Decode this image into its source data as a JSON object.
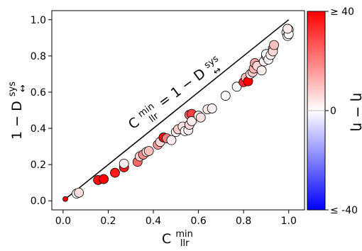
{
  "chart_data": {
    "type": "scatter",
    "x_axis": {
      "label_main": "C",
      "label_sup": "min",
      "label_sub": "llr",
      "range": [
        -0.05,
        1.07
      ],
      "ticks": [
        0.0,
        0.2,
        0.4,
        0.6,
        0.8,
        1.0
      ],
      "tick_labels": [
        "0.0",
        "0.2",
        "0.4",
        "0.6",
        "0.8",
        "1.0"
      ]
    },
    "y_axis": {
      "label_main": "1 − D",
      "label_sup": "sys",
      "label_sub": "↔",
      "range": [
        -0.05,
        1.05
      ],
      "ticks": [
        0.0,
        0.2,
        0.4,
        0.6,
        0.8,
        1.0
      ],
      "tick_labels": [
        "0.0",
        "0.2",
        "0.4",
        "0.6",
        "0.8",
        "1.0"
      ]
    },
    "reference_line": {
      "from": [
        0,
        0
      ],
      "to": [
        1,
        1
      ],
      "label_lhs_main": "C",
      "label_lhs_sup": "min",
      "label_lhs_sub": "llr",
      "label_eq": " = 1 − D",
      "label_rhs_sup": "sys",
      "label_rhs_sub": "↔"
    },
    "colorbar": {
      "label": "η − η",
      "min": -40,
      "max": 40,
      "tick_labels": [
        "≥ 40",
        "0",
        "≤ -40"
      ],
      "colors": {
        "low": "#0000ff",
        "mid": "#ffffff",
        "high": "#ff0000"
      }
    },
    "points": [
      {
        "x": 0.01,
        "y": 0.01,
        "c": 40
      },
      {
        "x": 0.06,
        "y": 0.04,
        "c": 0
      },
      {
        "x": 0.07,
        "y": 0.045,
        "c": 5
      },
      {
        "x": 0.155,
        "y": 0.115,
        "c": 38
      },
      {
        "x": 0.18,
        "y": 0.12,
        "c": 40
      },
      {
        "x": 0.23,
        "y": 0.155,
        "c": 36
      },
      {
        "x": 0.27,
        "y": 0.185,
        "c": 36
      },
      {
        "x": 0.27,
        "y": 0.205,
        "c": 2
      },
      {
        "x": 0.33,
        "y": 0.215,
        "c": 24
      },
      {
        "x": 0.34,
        "y": 0.245,
        "c": 8
      },
      {
        "x": 0.355,
        "y": 0.255,
        "c": 18
      },
      {
        "x": 0.37,
        "y": 0.27,
        "c": 4
      },
      {
        "x": 0.38,
        "y": 0.275,
        "c": 10
      },
      {
        "x": 0.42,
        "y": 0.31,
        "c": 16
      },
      {
        "x": 0.43,
        "y": 0.325,
        "c": 6
      },
      {
        "x": 0.445,
        "y": 0.35,
        "c": 38
      },
      {
        "x": 0.46,
        "y": 0.345,
        "c": 20
      },
      {
        "x": 0.48,
        "y": 0.335,
        "c": 3
      },
      {
        "x": 0.5,
        "y": 0.38,
        "c": 2
      },
      {
        "x": 0.51,
        "y": 0.395,
        "c": 8
      },
      {
        "x": 0.53,
        "y": 0.41,
        "c": 4
      },
      {
        "x": 0.54,
        "y": 0.385,
        "c": 0
      },
      {
        "x": 0.555,
        "y": 0.39,
        "c": 2
      },
      {
        "x": 0.56,
        "y": 0.42,
        "c": 6
      },
      {
        "x": 0.56,
        "y": 0.475,
        "c": 24
      },
      {
        "x": 0.57,
        "y": 0.48,
        "c": 30
      },
      {
        "x": 0.57,
        "y": 0.44,
        "c": 3
      },
      {
        "x": 0.6,
        "y": 0.47,
        "c": 2
      },
      {
        "x": 0.61,
        "y": 0.46,
        "c": 5
      },
      {
        "x": 0.64,
        "y": 0.505,
        "c": 4
      },
      {
        "x": 0.66,
        "y": 0.51,
        "c": 2
      },
      {
        "x": 0.72,
        "y": 0.58,
        "c": 0
      },
      {
        "x": 0.77,
        "y": 0.63,
        "c": -1
      },
      {
        "x": 0.8,
        "y": 0.655,
        "c": 34
      },
      {
        "x": 0.81,
        "y": 0.68,
        "c": 10
      },
      {
        "x": 0.82,
        "y": 0.66,
        "c": 40
      },
      {
        "x": 0.83,
        "y": 0.7,
        "c": 4
      },
      {
        "x": 0.84,
        "y": 0.71,
        "c": 8
      },
      {
        "x": 0.845,
        "y": 0.73,
        "c": 12
      },
      {
        "x": 0.85,
        "y": 0.76,
        "c": 14
      },
      {
        "x": 0.86,
        "y": 0.745,
        "c": 6
      },
      {
        "x": 0.88,
        "y": 0.72,
        "c": 3
      },
      {
        "x": 0.89,
        "y": 0.77,
        "c": 2
      },
      {
        "x": 0.9,
        "y": 0.8,
        "c": 4
      },
      {
        "x": 0.9,
        "y": 0.81,
        "c": 0
      },
      {
        "x": 0.91,
        "y": 0.78,
        "c": 1
      },
      {
        "x": 0.92,
        "y": 0.805,
        "c": 3
      },
      {
        "x": 0.93,
        "y": 0.84,
        "c": 12
      },
      {
        "x": 0.93,
        "y": 0.825,
        "c": 6
      },
      {
        "x": 0.935,
        "y": 0.86,
        "c": 10
      },
      {
        "x": 0.99,
        "y": 0.93,
        "c": 1
      },
      {
        "x": 0.995,
        "y": 0.91,
        "c": 0
      },
      {
        "x": 1.0,
        "y": 0.945,
        "c": 2
      },
      {
        "x": 1.0,
        "y": 0.92,
        "c": 0
      },
      {
        "x": 0.995,
        "y": 0.95,
        "c": 3
      }
    ]
  }
}
